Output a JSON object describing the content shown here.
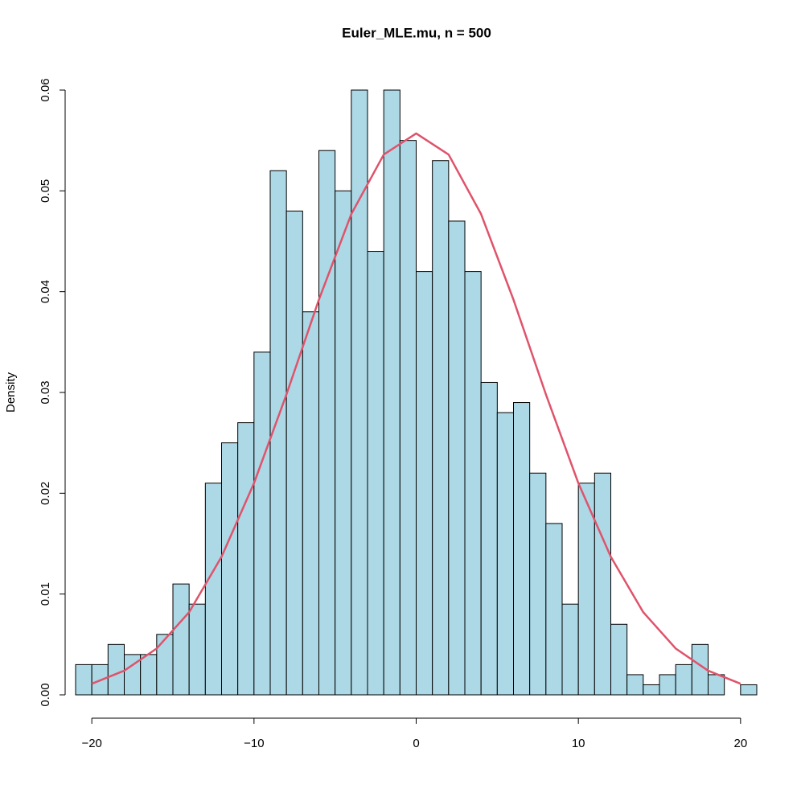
{
  "chart_data": {
    "type": "histogram",
    "title": "Euler_MLE.mu, n = 500",
    "ylabel": "Density",
    "bins": [
      -21,
      -20,
      -19,
      -18,
      -17,
      -16,
      -15,
      -14,
      -13,
      -12,
      -11,
      -10,
      -9,
      -8,
      -7,
      -6,
      -5,
      -4,
      -3,
      -2,
      -1,
      0,
      1,
      2,
      3,
      4,
      5,
      6,
      7,
      8,
      9,
      10,
      11,
      12,
      13,
      14,
      15,
      16,
      17,
      18,
      19,
      20,
      21
    ],
    "values": [
      0.003,
      0.003,
      0.005,
      0.004,
      0.004,
      0.006,
      0.011,
      0.009,
      0.021,
      0.025,
      0.027,
      0.034,
      0.052,
      0.048,
      0.038,
      0.054,
      0.05,
      0.06,
      0.044,
      0.06,
      0.055,
      0.042,
      0.053,
      0.047,
      0.042,
      0.031,
      0.028,
      0.029,
      0.022,
      0.017,
      0.009,
      0.021,
      0.022,
      0.007,
      0.002,
      0.001,
      0.002,
      0.003,
      0.005,
      0.002,
      0,
      0.001
    ],
    "color": "#add8e6",
    "edge_color": "#000000",
    "curve": {
      "color": "#df536b",
      "x": [
        -20,
        -18,
        -16,
        -14,
        -12,
        -10,
        -8,
        -6,
        -4,
        -2,
        0,
        2,
        4,
        6,
        8,
        10,
        12,
        14,
        16,
        18,
        20
      ],
      "values": [
        0.0011,
        0.0024,
        0.0046,
        0.0082,
        0.0137,
        0.021,
        0.0298,
        0.0392,
        0.0477,
        0.0536,
        0.0557,
        0.0536,
        0.0477,
        0.0392,
        0.0298,
        0.021,
        0.0137,
        0.0082,
        0.0046,
        0.0024,
        0.0011
      ]
    },
    "xlim": [
      -21,
      21
    ],
    "ylim": [
      0,
      0.06
    ],
    "xticks": [
      {
        "value": -20,
        "label": "−20"
      },
      {
        "value": -10,
        "label": "−10"
      },
      0,
      10,
      20
    ],
    "yticks": [
      {
        "value": 0,
        "label": "0.00"
      },
      0.01,
      0.02,
      0.03,
      0.04,
      0.05,
      0.06
    ]
  }
}
